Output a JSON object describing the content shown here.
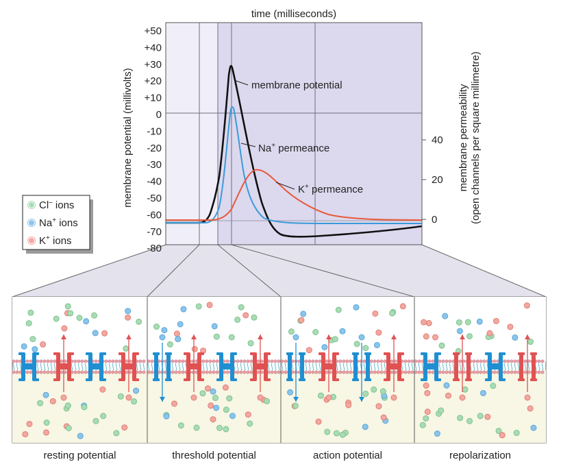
{
  "figure": {
    "x_axis_title": "time (milliseconds)",
    "left_axis_title": "membrane potential (millivolts)",
    "right_axis_title_line1": "membrane permeability",
    "right_axis_title_line2": "(open channels per square millimetre)",
    "left_ticks": [
      "+50",
      "+40",
      "+30",
      "+20",
      "+10",
      "0",
      "-10",
      "-20",
      "-30",
      "-40",
      "-50",
      "-60",
      "-70",
      "-80"
    ],
    "right_ticks": [
      "40",
      "20",
      "0"
    ]
  },
  "curves": {
    "membrane_potential": {
      "label": "membrane potential",
      "color": "#111111"
    },
    "na": {
      "label_base": "Na",
      "label_sup": "+",
      "label_rest": " permeance",
      "color": "#3a9ad9"
    },
    "k": {
      "label_base": "K",
      "label_sup": "+",
      "label_rest": " permeance",
      "color": "#e8593a"
    }
  },
  "legend": [
    {
      "base": "Cl",
      "sup": "–",
      "rest": " ions",
      "color": "#a9dcb4"
    },
    {
      "base": "Na",
      "sup": "+",
      "rest": " ions",
      "color": "#8cc4ea"
    },
    {
      "base": "K",
      "sup": "+",
      "rest": " ions",
      "color": "#f2a8a0"
    }
  ],
  "panels": [
    {
      "caption": "resting potential"
    },
    {
      "caption": "threshold potential"
    },
    {
      "caption": "action potential"
    },
    {
      "caption": "repolarization"
    }
  ],
  "colors": {
    "plot_bg": "#f0eef8",
    "plot_shade": "#dcd8ee",
    "panel_top": "#ffffff",
    "panel_bottom": "#f8f6e4",
    "channel_blue": "#1f8fd2",
    "channel_red": "#e05252"
  }
}
